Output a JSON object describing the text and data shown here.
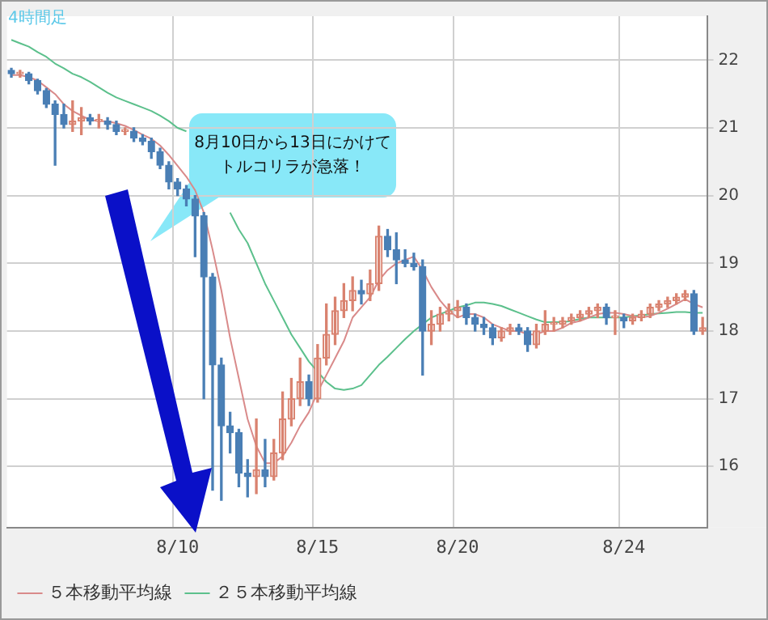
{
  "chart_data": {
    "type": "candlestick",
    "title": "4時間足",
    "categories": [
      null,
      null,
      null,
      null,
      null,
      null,
      null,
      null,
      null,
      null,
      null,
      null,
      null,
      null,
      null,
      null,
      null,
      null,
      null,
      "8/10",
      null,
      null,
      null,
      null,
      null,
      null,
      null,
      null,
      null,
      null,
      null,
      null,
      null,
      null,
      null,
      "8/15",
      null,
      null,
      null,
      null,
      null,
      null,
      null,
      null,
      null,
      null,
      null,
      null,
      null,
      null,
      null,
      "8/20",
      null,
      null,
      null,
      null,
      null,
      null,
      null,
      null,
      null,
      null,
      null,
      null,
      null,
      null,
      null,
      null,
      null,
      null,
      "8/24",
      null,
      null,
      null,
      null,
      null,
      null,
      null,
      null,
      null
    ],
    "ohlc": [
      [
        21.85,
        21.88,
        21.75,
        21.8
      ],
      [
        21.8,
        21.85,
        21.75,
        21.8
      ],
      [
        21.8,
        21.82,
        21.65,
        21.7
      ],
      [
        21.7,
        21.72,
        21.5,
        21.55
      ],
      [
        21.55,
        21.58,
        21.3,
        21.35
      ],
      [
        21.35,
        21.4,
        20.45,
        21.2
      ],
      [
        21.2,
        21.35,
        21.0,
        21.05
      ],
      [
        21.05,
        21.4,
        20.95,
        21.1
      ],
      [
        21.1,
        21.3,
        20.9,
        21.15
      ],
      [
        21.15,
        21.2,
        21.05,
        21.1
      ],
      [
        21.1,
        21.2,
        21.0,
        21.1
      ],
      [
        21.1,
        21.15,
        20.98,
        21.05
      ],
      [
        21.05,
        21.1,
        20.9,
        20.95
      ],
      [
        20.95,
        21.0,
        20.9,
        20.95
      ],
      [
        20.95,
        21.0,
        20.8,
        20.85
      ],
      [
        20.85,
        20.9,
        20.75,
        20.8
      ],
      [
        20.8,
        20.85,
        20.55,
        20.65
      ],
      [
        20.65,
        20.7,
        20.4,
        20.45
      ],
      [
        20.45,
        20.5,
        20.1,
        20.2
      ],
      [
        20.2,
        20.25,
        20.0,
        20.1
      ],
      [
        20.1,
        20.15,
        19.85,
        19.95
      ],
      [
        19.95,
        20.0,
        19.1,
        19.7
      ],
      [
        19.7,
        19.75,
        17.0,
        18.8
      ],
      [
        18.8,
        18.85,
        15.65,
        17.5
      ],
      [
        17.5,
        17.6,
        15.5,
        16.6
      ],
      [
        16.6,
        16.8,
        16.2,
        16.5
      ],
      [
        16.5,
        16.55,
        15.7,
        15.9
      ],
      [
        15.9,
        16.1,
        15.55,
        15.85
      ],
      [
        15.85,
        16.7,
        15.6,
        15.95
      ],
      [
        15.95,
        16.4,
        15.7,
        15.85
      ],
      [
        15.85,
        16.4,
        15.8,
        16.2
      ],
      [
        16.2,
        17.1,
        16.1,
        16.7
      ],
      [
        16.7,
        17.3,
        16.6,
        17.0
      ],
      [
        17.0,
        17.6,
        16.9,
        17.25
      ],
      [
        17.25,
        17.35,
        16.9,
        17.0
      ],
      [
        17.0,
        17.8,
        16.95,
        17.6
      ],
      [
        17.6,
        18.4,
        17.5,
        17.95
      ],
      [
        17.95,
        18.5,
        17.8,
        18.3
      ],
      [
        18.3,
        18.7,
        18.2,
        18.45
      ],
      [
        18.45,
        18.8,
        18.3,
        18.6
      ],
      [
        18.6,
        18.75,
        18.4,
        18.55
      ],
      [
        18.55,
        18.9,
        18.45,
        18.7
      ],
      [
        18.7,
        19.55,
        18.6,
        19.4
      ],
      [
        19.4,
        19.5,
        19.1,
        19.2
      ],
      [
        19.2,
        19.45,
        18.7,
        19.05
      ],
      [
        19.05,
        19.2,
        18.95,
        19.0
      ],
      [
        19.0,
        19.15,
        18.9,
        18.95
      ],
      [
        18.95,
        19.05,
        17.35,
        18.0
      ],
      [
        18.0,
        18.3,
        17.8,
        18.1
      ],
      [
        18.1,
        18.35,
        18.0,
        18.25
      ],
      [
        18.25,
        18.4,
        18.15,
        18.3
      ],
      [
        18.3,
        18.45,
        18.2,
        18.35
      ],
      [
        18.35,
        18.4,
        18.1,
        18.2
      ],
      [
        18.2,
        18.25,
        18.0,
        18.1
      ],
      [
        18.1,
        18.2,
        17.95,
        18.05
      ],
      [
        18.05,
        18.1,
        17.8,
        17.9
      ],
      [
        17.9,
        18.05,
        17.85,
        18.0
      ],
      [
        18.0,
        18.1,
        17.95,
        18.05
      ],
      [
        18.05,
        18.1,
        17.95,
        18.0
      ],
      [
        18.0,
        18.05,
        17.7,
        17.8
      ],
      [
        17.8,
        18.1,
        17.75,
        18.0
      ],
      [
        18.0,
        18.3,
        17.95,
        18.1
      ],
      [
        18.1,
        18.2,
        18.0,
        18.1
      ],
      [
        18.1,
        18.2,
        18.05,
        18.15
      ],
      [
        18.15,
        18.25,
        18.1,
        18.2
      ],
      [
        18.2,
        18.3,
        18.15,
        18.25
      ],
      [
        18.25,
        18.35,
        18.2,
        18.3
      ],
      [
        18.3,
        18.4,
        18.2,
        18.35
      ],
      [
        18.35,
        18.4,
        18.1,
        18.2
      ],
      [
        18.2,
        18.3,
        17.95,
        18.2
      ],
      [
        18.2,
        18.25,
        18.05,
        18.15
      ],
      [
        18.15,
        18.25,
        18.1,
        18.2
      ],
      [
        18.2,
        18.3,
        18.15,
        18.25
      ],
      [
        18.25,
        18.4,
        18.2,
        18.35
      ],
      [
        18.35,
        18.45,
        18.3,
        18.4
      ],
      [
        18.4,
        18.5,
        18.35,
        18.45
      ],
      [
        18.45,
        18.55,
        18.4,
        18.5
      ],
      [
        18.5,
        18.6,
        18.45,
        18.55
      ],
      [
        18.55,
        18.6,
        17.95,
        18.0
      ],
      [
        18.0,
        18.2,
        17.95,
        18.05
      ]
    ],
    "series": [
      {
        "name": "５本移動平均線",
        "type": "line",
        "color": "#d98a8a",
        "values": [
          21.78,
          21.78,
          21.75,
          21.7,
          21.6,
          21.5,
          21.35,
          21.25,
          21.18,
          21.12,
          21.1,
          21.1,
          21.07,
          21.03,
          20.97,
          20.9,
          20.84,
          20.74,
          20.6,
          20.44,
          20.28,
          20.08,
          19.75,
          19.2,
          18.6,
          17.9,
          17.3,
          16.7,
          16.3,
          16.05,
          16.05,
          16.15,
          16.35,
          16.6,
          16.8,
          17.1,
          17.35,
          17.6,
          17.85,
          18.2,
          18.35,
          18.5,
          18.75,
          18.9,
          19.0,
          19.05,
          19.1,
          18.9,
          18.65,
          18.45,
          18.3,
          18.2,
          18.25,
          18.25,
          18.2,
          18.1,
          18.05,
          18.0,
          18.0,
          17.95,
          17.95,
          18.0,
          18.0,
          18.05,
          18.12,
          18.15,
          18.2,
          18.25,
          18.27,
          18.27,
          18.25,
          18.22,
          18.2,
          18.22,
          18.27,
          18.33,
          18.4,
          18.47,
          18.4,
          18.35
        ]
      },
      {
        "name": "２５本移動平均線",
        "type": "line",
        "color": "#5cc08c",
        "values": [
          22.3,
          22.25,
          22.2,
          22.12,
          22.05,
          21.95,
          21.88,
          21.8,
          21.75,
          21.68,
          21.6,
          21.52,
          21.45,
          21.4,
          21.35,
          21.3,
          21.25,
          21.18,
          21.1,
          21.0,
          20.95,
          null,
          null,
          null,
          null,
          19.75,
          19.5,
          19.3,
          19.0,
          18.7,
          18.45,
          18.2,
          17.95,
          17.75,
          17.55,
          17.4,
          17.25,
          17.15,
          17.13,
          17.15,
          17.2,
          17.35,
          17.5,
          17.62,
          17.75,
          17.88,
          18.0,
          18.1,
          18.2,
          18.25,
          18.3,
          18.35,
          18.38,
          18.42,
          18.42,
          18.4,
          18.37,
          18.32,
          18.27,
          18.22,
          18.17,
          18.13,
          18.13,
          18.13,
          18.15,
          18.18,
          18.2,
          18.2,
          18.2,
          18.2,
          18.2,
          18.22,
          18.23,
          18.25,
          18.26,
          18.27,
          18.28,
          18.28,
          18.27,
          18.27
        ]
      }
    ],
    "ylim": [
      15.1,
      22.65
    ],
    "yticks": [
      16,
      17,
      18,
      19,
      20,
      21,
      22
    ],
    "grid": true,
    "legend": "bottom left",
    "marker": "none",
    "annotations": [
      "8月10日から13日にかけてトルコリラが急落！"
    ]
  }
}
